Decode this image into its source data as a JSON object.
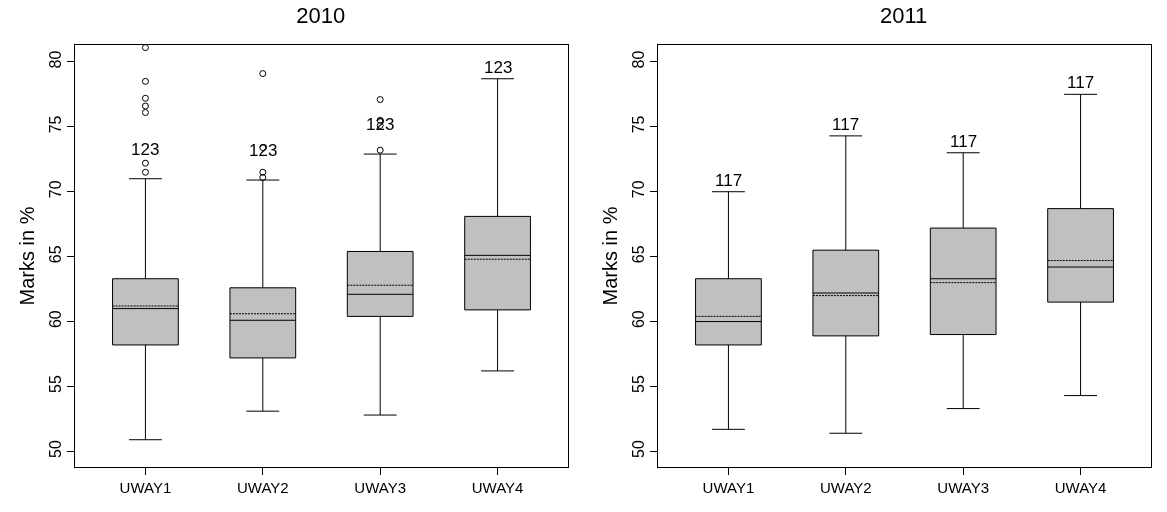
{
  "chart_data": [
    {
      "type": "box",
      "title": "2010",
      "ylabel": "Marks in %",
      "categories": [
        "UWAY1",
        "UWAY2",
        "UWAY3",
        "UWAY4"
      ],
      "ylim": [
        48.8,
        81.3
      ],
      "yticks": [
        50,
        55,
        60,
        65,
        70,
        75,
        80
      ],
      "grid": false,
      "legend": false,
      "color": "#c0c0c0",
      "boxes": [
        {
          "low": 50.9,
          "q1": 58.2,
          "median": 61.0,
          "q3": 63.3,
          "high": 71.0,
          "mean": 61.2,
          "outliers": [
            81.1,
            78.5,
            77.2,
            76.6,
            76.1,
            72.2,
            71.5
          ]
        },
        {
          "low": 53.1,
          "q1": 57.2,
          "median": 60.1,
          "q3": 62.6,
          "high": 70.9,
          "mean": 60.6,
          "outliers": [
            79.1,
            73.4,
            71.5,
            71.1
          ]
        },
        {
          "low": 52.8,
          "q1": 60.4,
          "median": 62.1,
          "q3": 65.4,
          "high": 72.9,
          "mean": 62.8,
          "outliers": [
            77.1,
            75.5,
            75.1,
            73.2
          ]
        },
        {
          "low": 56.2,
          "q1": 60.9,
          "median": 65.1,
          "q3": 68.1,
          "high": 78.7,
          "mean": 64.8
        }
      ],
      "annotations": [
        "123",
        "123",
        "123",
        "123"
      ]
    },
    {
      "type": "box",
      "title": "2011",
      "ylabel": "Marks in %",
      "categories": [
        "UWAY1",
        "UWAY2",
        "UWAY3",
        "UWAY4"
      ],
      "ylim": [
        48.8,
        81.3
      ],
      "yticks": [
        50,
        55,
        60,
        65,
        70,
        75,
        80
      ],
      "grid": false,
      "legend": false,
      "color": "#c0c0c0",
      "boxes": [
        {
          "low": 51.7,
          "q1": 58.2,
          "median": 60.0,
          "q3": 63.3,
          "high": 70.0,
          "mean": 60.4
        },
        {
          "low": 51.4,
          "q1": 58.9,
          "median": 62.2,
          "q3": 65.5,
          "high": 74.3,
          "mean": 62.0
        },
        {
          "low": 53.3,
          "q1": 59.0,
          "median": 63.3,
          "q3": 67.2,
          "high": 73.0,
          "mean": 63.0
        },
        {
          "low": 54.3,
          "q1": 61.5,
          "median": 64.2,
          "q3": 68.7,
          "high": 77.5,
          "mean": 64.7
        }
      ],
      "annotations": [
        "117",
        "117",
        "117",
        "117"
      ]
    }
  ]
}
